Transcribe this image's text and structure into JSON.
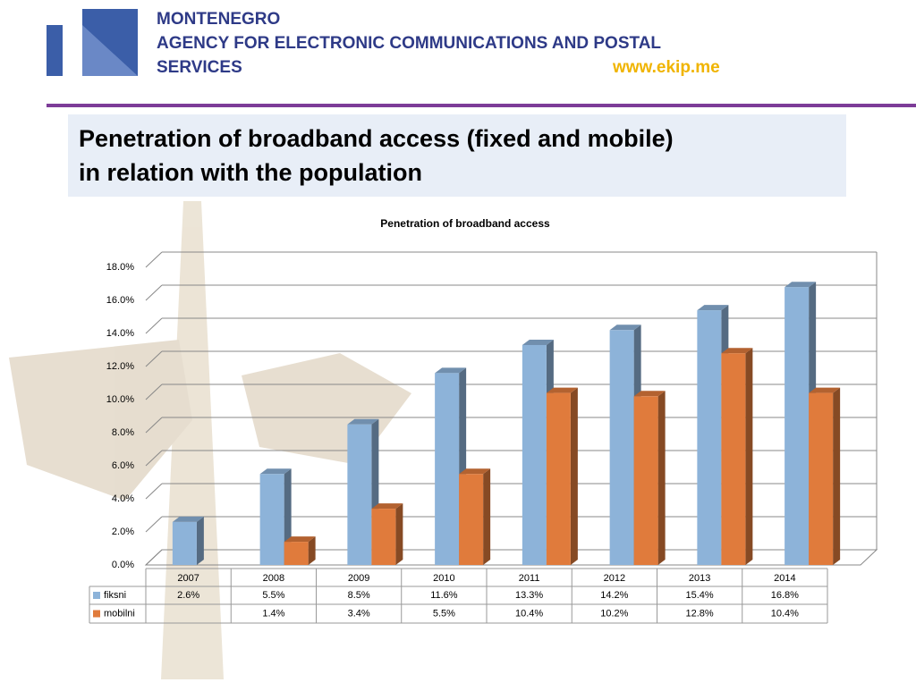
{
  "header": {
    "lines": [
      "MONTENEGRO",
      "AGENCY FOR ELECTRONIC COMMUNICATIONS AND POSTAL",
      "SERVICES"
    ],
    "url": "www.ekip.me"
  },
  "slide_title": {
    "lines": [
      "Penetration of broadband access (fixed and mobile)",
      "in relation with the population"
    ]
  },
  "chart_data": {
    "type": "bar3d",
    "title": "Penetration of broadband access",
    "categories": [
      "2007",
      "2008",
      "2009",
      "2010",
      "2011",
      "2012",
      "2013",
      "2014"
    ],
    "series": [
      {
        "name": "fiksni",
        "color": "#8db3d9",
        "values": [
          2.6,
          5.5,
          8.5,
          11.6,
          13.3,
          14.2,
          15.4,
          16.8
        ],
        "value_labels": [
          "2.6%",
          "5.5%",
          "8.5%",
          "11.6%",
          "13.3%",
          "14.2%",
          "15.4%",
          "16.8%"
        ]
      },
      {
        "name": "mobilni",
        "color": "#e07b3c",
        "values": [
          null,
          1.4,
          3.4,
          5.5,
          10.4,
          10.2,
          12.8,
          10.4
        ],
        "value_labels": [
          null,
          "1.4%",
          "3.4%",
          "5.5%",
          "10.4%",
          "10.2%",
          "12.8%",
          "10.4%"
        ]
      }
    ],
    "ylim": [
      0,
      18
    ],
    "yticks": [
      {
        "value": 0,
        "label": "0.0%"
      },
      {
        "value": 2,
        "label": "2.0%"
      },
      {
        "value": 4,
        "label": "4.0%"
      },
      {
        "value": 6,
        "label": "6.0%"
      },
      {
        "value": 8,
        "label": "8.0%"
      },
      {
        "value": 10,
        "label": "10.0%"
      },
      {
        "value": 12,
        "label": "12.0%"
      },
      {
        "value": 14,
        "label": "14.0%"
      },
      {
        "value": 16,
        "label": "16.0%"
      },
      {
        "value": 18,
        "label": "18.0%"
      }
    ],
    "grid": true,
    "data_table": true
  }
}
